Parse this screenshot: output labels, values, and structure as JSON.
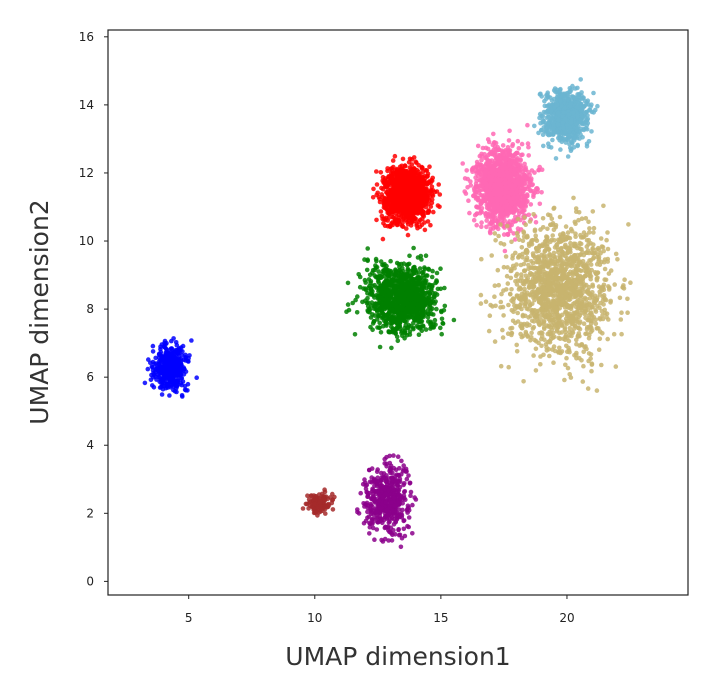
{
  "chart_data": {
    "type": "scatter",
    "title": "",
    "xlabel": "UMAP dimension1",
    "ylabel": "UMAP dimension2",
    "xlim": [
      1.8,
      24.8
    ],
    "ylim": [
      -0.4,
      16.2
    ],
    "x_ticks": [
      5,
      10,
      15,
      20
    ],
    "y_ticks": [
      0,
      2,
      4,
      6,
      8,
      10,
      12,
      14,
      16
    ],
    "grid": false,
    "legend": "none",
    "clusters": [
      {
        "color": "#0000ff",
        "points_approx": 420,
        "x_range": [
          2.9,
          5.7
        ],
        "y_range": [
          4.9,
          7.6
        ]
      },
      {
        "color": "#ff0000",
        "points_approx": 1300,
        "x_range": [
          11.8,
          15.5
        ],
        "y_range": [
          9.8,
          12.9
        ]
      },
      {
        "color": "#ff69b4",
        "points_approx": 1500,
        "x_range": [
          15.3,
          19.6
        ],
        "y_range": [
          9.4,
          13.8
        ]
      },
      {
        "color": "#6bb5d1",
        "points_approx": 800,
        "x_range": [
          18.3,
          21.6
        ],
        "y_range": [
          12.2,
          15.1
        ]
      },
      {
        "color": "#008000",
        "points_approx": 1100,
        "x_range": [
          10.7,
          16.2
        ],
        "y_range": [
          6.3,
          10.3
        ]
      },
      {
        "color": "#c8b46e",
        "points_approx": 3800,
        "x_range": [
          15.5,
          23.8
        ],
        "y_range": [
          4.9,
          12.3
        ]
      },
      {
        "color": "#8b008b",
        "points_approx": 500,
        "x_range": [
          11.1,
          14.6
        ],
        "y_range": [
          0.4,
          4.4
        ]
      },
      {
        "color": "#a52a2a",
        "points_approx": 110,
        "x_range": [
          9.2,
          11.2
        ],
        "y_range": [
          1.7,
          2.9
        ]
      }
    ]
  }
}
